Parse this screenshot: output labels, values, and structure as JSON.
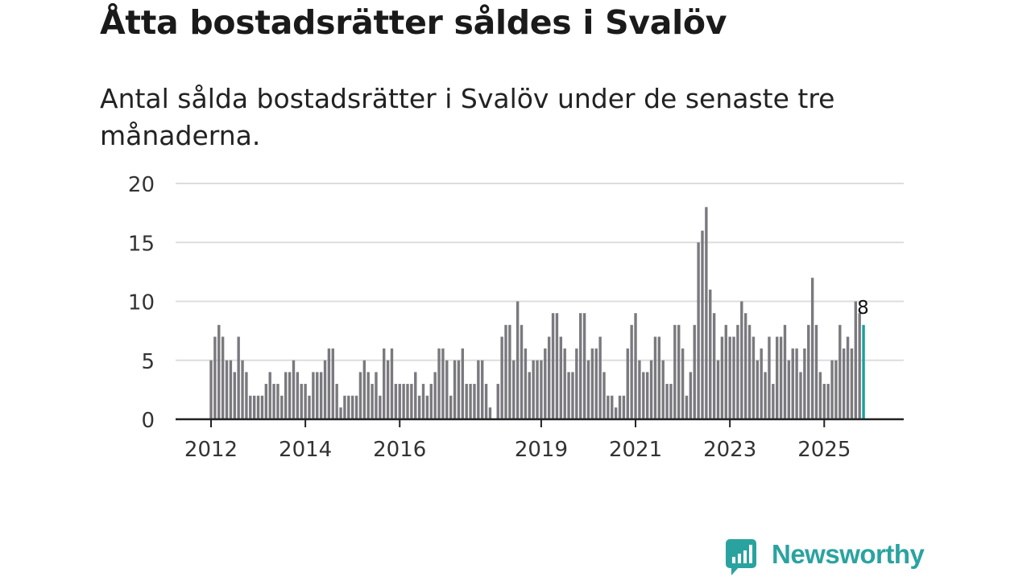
{
  "title": "Åtta bostadsrätter såldes i Svalöv",
  "subtitle": "Antal sålda bostadsrätter i Svalöv under de senaste tre månaderna.",
  "brand": "Newsworthy",
  "colors": {
    "bar": "#7a797e",
    "highlight": "#17a19c",
    "grid": "#dddddd",
    "axis": "#222222",
    "brand": "#2aa3a0"
  },
  "chart_data": {
    "type": "bar",
    "title": "Åtta bostadsrätter såldes i Svalöv",
    "ylim": [
      0,
      20
    ],
    "yticks": [
      0,
      5,
      10,
      15,
      20
    ],
    "x_tick_labels": [
      {
        "label": "2012",
        "index": 0
      },
      {
        "label": "2014",
        "index": 24
      },
      {
        "label": "2016",
        "index": 48
      },
      {
        "label": "2019",
        "index": 84
      },
      {
        "label": "2021",
        "index": 108
      },
      {
        "label": "2023",
        "index": 132
      },
      {
        "label": "2025",
        "index": 156
      }
    ],
    "highlight_label": "8",
    "values": [
      5,
      7,
      8,
      7,
      5,
      5,
      4,
      7,
      5,
      4,
      2,
      2,
      2,
      2,
      3,
      4,
      3,
      3,
      2,
      4,
      4,
      5,
      4,
      3,
      3,
      2,
      4,
      4,
      4,
      5,
      6,
      6,
      3,
      1,
      2,
      2,
      2,
      2,
      4,
      5,
      4,
      3,
      4,
      2,
      6,
      5,
      6,
      3,
      3,
      3,
      3,
      3,
      4,
      2,
      3,
      2,
      3,
      4,
      6,
      6,
      5,
      2,
      5,
      5,
      6,
      3,
      3,
      3,
      5,
      5,
      3,
      1,
      0,
      3,
      7,
      8,
      8,
      5,
      10,
      8,
      6,
      4,
      5,
      5,
      5,
      6,
      7,
      9,
      9,
      7,
      6,
      4,
      4,
      6,
      9,
      9,
      5,
      6,
      6,
      7,
      4,
      2,
      2,
      1,
      2,
      2,
      6,
      8,
      9,
      5,
      4,
      4,
      5,
      7,
      7,
      5,
      3,
      3,
      8,
      8,
      6,
      2,
      4,
      8,
      15,
      16,
      18,
      11,
      9,
      5,
      7,
      8,
      7,
      7,
      8,
      10,
      9,
      8,
      7,
      5,
      6,
      4,
      7,
      3,
      7,
      7,
      8,
      5,
      6,
      6,
      4,
      6,
      8,
      12,
      8,
      4,
      3,
      3,
      5,
      5,
      8,
      6,
      7,
      6,
      10,
      9,
      8
    ]
  }
}
